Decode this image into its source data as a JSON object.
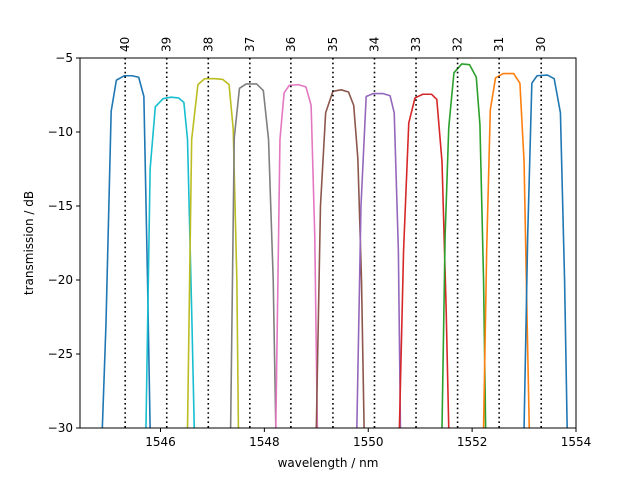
{
  "chart_data": {
    "type": "line",
    "xlabel": "wavelength / nm",
    "ylabel": "transmission / dB",
    "xlim": [
      1544.45,
      1554.0
    ],
    "ylim": [
      -30,
      -5
    ],
    "xticks": [
      1546,
      1548,
      1550,
      1552,
      1554
    ],
    "yticks": [
      -30,
      -25,
      -20,
      -15,
      -10,
      -5
    ],
    "grid": false,
    "channel_markers": [
      {
        "label": "40",
        "x": 1545.32
      },
      {
        "label": "39",
        "x": 1546.12
      },
      {
        "label": "38",
        "x": 1546.92
      },
      {
        "label": "37",
        "x": 1547.72
      },
      {
        "label": "36",
        "x": 1548.51
      },
      {
        "label": "35",
        "x": 1549.32
      },
      {
        "label": "34",
        "x": 1550.12
      },
      {
        "label": "33",
        "x": 1550.92
      },
      {
        "label": "32",
        "x": 1551.72
      },
      {
        "label": "31",
        "x": 1552.52
      },
      {
        "label": "30",
        "x": 1553.33
      }
    ],
    "series": [
      {
        "color": "#1f77b4",
        "points": [
          [
            1544.88,
            -30
          ],
          [
            1544.95,
            -23
          ],
          [
            1545.05,
            -8.6
          ],
          [
            1545.15,
            -6.5
          ],
          [
            1545.3,
            -6.2
          ],
          [
            1545.45,
            -6.2
          ],
          [
            1545.58,
            -6.3
          ],
          [
            1545.68,
            -7.6
          ],
          [
            1545.75,
            -20
          ],
          [
            1545.8,
            -30
          ]
        ]
      },
      {
        "color": "#17becf",
        "points": [
          [
            1545.72,
            -30
          ],
          [
            1545.8,
            -12.5
          ],
          [
            1545.9,
            -8.3
          ],
          [
            1546.05,
            -7.75
          ],
          [
            1546.2,
            -7.65
          ],
          [
            1546.35,
            -7.7
          ],
          [
            1546.45,
            -8.0
          ],
          [
            1546.52,
            -10.5
          ],
          [
            1546.6,
            -22
          ],
          [
            1546.65,
            -30
          ]
        ]
      },
      {
        "color": "#bcbd22",
        "points": [
          [
            1546.52,
            -30
          ],
          [
            1546.6,
            -10.5
          ],
          [
            1546.72,
            -6.8
          ],
          [
            1546.85,
            -6.4
          ],
          [
            1547.05,
            -6.4
          ],
          [
            1547.2,
            -6.45
          ],
          [
            1547.32,
            -6.8
          ],
          [
            1547.4,
            -9.8
          ],
          [
            1547.47,
            -20
          ],
          [
            1547.5,
            -30
          ]
        ]
      },
      {
        "color": "#7f7f7f",
        "points": [
          [
            1547.35,
            -30
          ],
          [
            1547.42,
            -10.4
          ],
          [
            1547.52,
            -7.05
          ],
          [
            1547.65,
            -6.75
          ],
          [
            1547.85,
            -6.75
          ],
          [
            1547.98,
            -7.2
          ],
          [
            1548.08,
            -10.5
          ],
          [
            1548.17,
            -20
          ],
          [
            1548.22,
            -30
          ]
        ]
      },
      {
        "color": "#e377c2",
        "points": [
          [
            1548.22,
            -30
          ],
          [
            1548.3,
            -10.5
          ],
          [
            1548.38,
            -7.35
          ],
          [
            1548.48,
            -6.85
          ],
          [
            1548.65,
            -6.8
          ],
          [
            1548.8,
            -6.95
          ],
          [
            1548.9,
            -8.2
          ],
          [
            1548.97,
            -17
          ],
          [
            1549.02,
            -30
          ]
        ]
      },
      {
        "color": "#8c564b",
        "points": [
          [
            1549.0,
            -30
          ],
          [
            1549.08,
            -15
          ],
          [
            1549.18,
            -8.7
          ],
          [
            1549.32,
            -7.25
          ],
          [
            1549.48,
            -7.15
          ],
          [
            1549.62,
            -7.3
          ],
          [
            1549.72,
            -8.2
          ],
          [
            1549.8,
            -11.8
          ],
          [
            1549.87,
            -20
          ],
          [
            1549.92,
            -30
          ]
        ]
      },
      {
        "color": "#9467bd",
        "points": [
          [
            1549.78,
            -30
          ],
          [
            1549.86,
            -15
          ],
          [
            1549.96,
            -7.6
          ],
          [
            1550.1,
            -7.4
          ],
          [
            1550.28,
            -7.4
          ],
          [
            1550.42,
            -7.55
          ],
          [
            1550.5,
            -8.7
          ],
          [
            1550.58,
            -18
          ],
          [
            1550.62,
            -30
          ]
        ]
      },
      {
        "color": "#d62728",
        "points": [
          [
            1550.6,
            -30
          ],
          [
            1550.68,
            -18
          ],
          [
            1550.78,
            -9.4
          ],
          [
            1550.9,
            -7.7
          ],
          [
            1551.05,
            -7.45
          ],
          [
            1551.22,
            -7.45
          ],
          [
            1551.32,
            -7.8
          ],
          [
            1551.42,
            -12
          ],
          [
            1551.5,
            -22
          ],
          [
            1551.55,
            -30
          ]
        ]
      },
      {
        "color": "#2ca02c",
        "points": [
          [
            1551.42,
            -30
          ],
          [
            1551.48,
            -17
          ],
          [
            1551.55,
            -9.7
          ],
          [
            1551.65,
            -6.0
          ],
          [
            1551.8,
            -5.4
          ],
          [
            1551.95,
            -5.45
          ],
          [
            1552.08,
            -6.3
          ],
          [
            1552.15,
            -9.5
          ],
          [
            1552.22,
            -20
          ],
          [
            1552.26,
            -30
          ]
        ]
      },
      {
        "color": "#ff7f0e",
        "points": [
          [
            1552.22,
            -30
          ],
          [
            1552.28,
            -18
          ],
          [
            1552.35,
            -8.5
          ],
          [
            1552.45,
            -6.35
          ],
          [
            1552.6,
            -6.05
          ],
          [
            1552.8,
            -6.05
          ],
          [
            1552.92,
            -6.7
          ],
          [
            1553.0,
            -12
          ],
          [
            1553.06,
            -23
          ],
          [
            1553.1,
            -30
          ]
        ]
      },
      {
        "color": "#1f77b4",
        "points": [
          [
            1553.0,
            -30
          ],
          [
            1553.07,
            -17
          ],
          [
            1553.15,
            -6.7
          ],
          [
            1553.25,
            -6.2
          ],
          [
            1553.45,
            -6.15
          ],
          [
            1553.58,
            -6.4
          ],
          [
            1553.7,
            -8.7
          ],
          [
            1553.78,
            -20
          ],
          [
            1553.83,
            -30
          ]
        ]
      }
    ]
  }
}
